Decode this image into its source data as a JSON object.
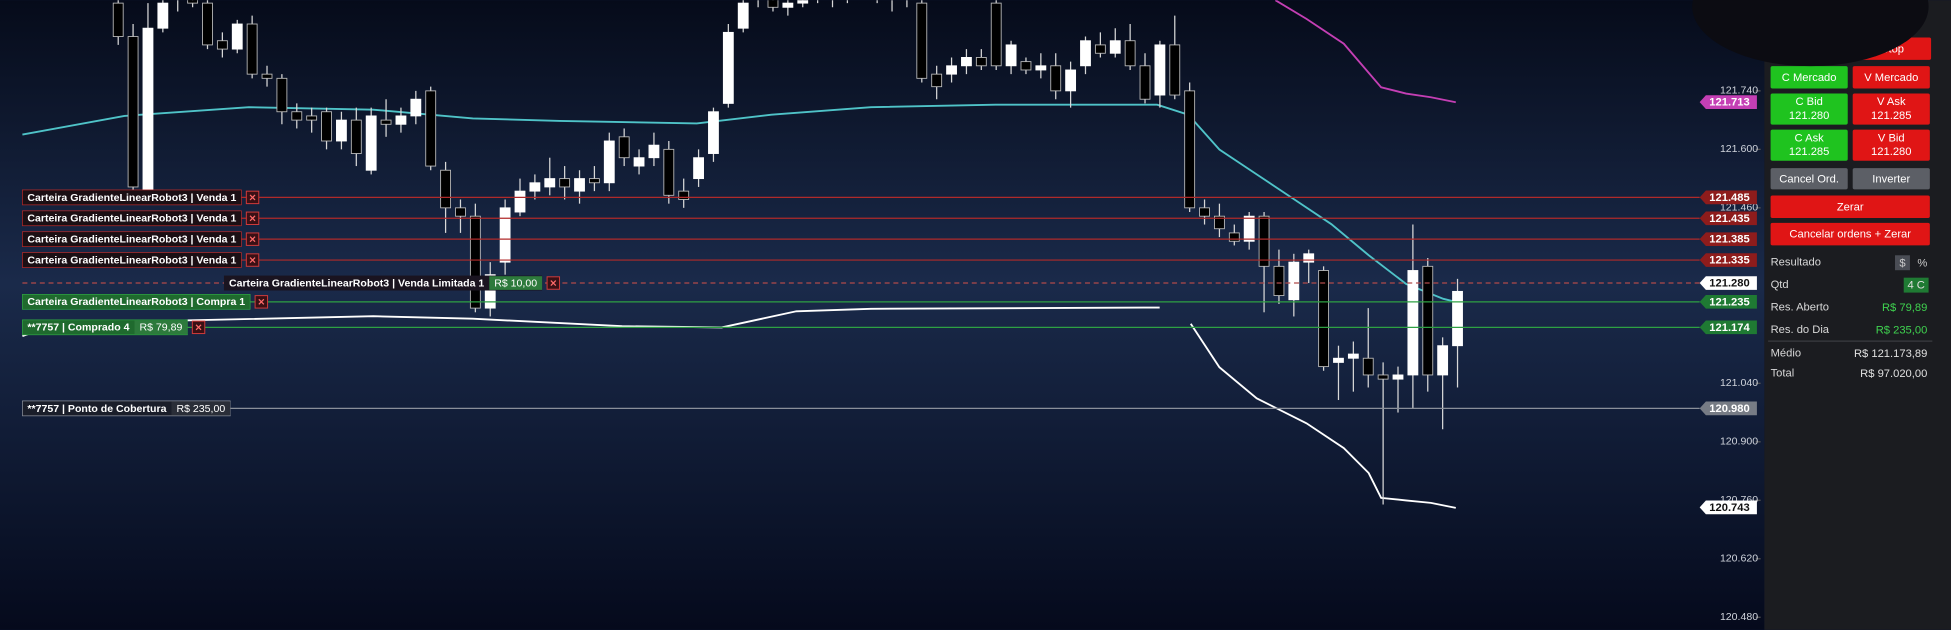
{
  "chart": {
    "type": "candlestick",
    "ylim": [
      120.45,
      121.957
    ],
    "yticks": [
      {
        "value": 121.74,
        "label": "121.740"
      },
      {
        "value": 121.6,
        "label": "121.600"
      },
      {
        "value": 121.46,
        "label": "121.460"
      },
      {
        "value": 121.04,
        "label": "121.040"
      },
      {
        "value": 120.9,
        "label": "120.900"
      },
      {
        "value": 120.76,
        "label": "120.760"
      },
      {
        "value": 120.62,
        "label": "120.620"
      },
      {
        "value": 120.48,
        "label": "120.480"
      }
    ],
    "candles": {
      "open": [
        121.95,
        121.87,
        121.48,
        121.89,
        121.96,
        121.98,
        121.95,
        121.86,
        121.84,
        121.9,
        121.78,
        121.77,
        121.69,
        121.68,
        121.69,
        121.62,
        121.67,
        121.55,
        121.67,
        121.66,
        121.68,
        121.74,
        121.55,
        121.46,
        121.44,
        121.22,
        121.33,
        121.45,
        121.5,
        121.51,
        121.53,
        121.5,
        121.53,
        121.52,
        121.63,
        121.56,
        121.58,
        121.6,
        121.5,
        121.53,
        121.59,
        121.71,
        121.89,
        121.96,
        121.97,
        121.94,
        121.95,
        121.98,
        121.96,
        121.97,
        121.98,
        121.99,
        121.96,
        121.97,
        121.95,
        121.78,
        121.78,
        121.8,
        121.82,
        121.95,
        121.8,
        121.81,
        121.79,
        121.8,
        121.74,
        121.8,
        121.85,
        121.83,
        121.86,
        121.8,
        121.73,
        121.85,
        121.74,
        121.46,
        121.44,
        121.4,
        121.38,
        121.44,
        121.32,
        121.24,
        121.33,
        121.31,
        121.09,
        121.1,
        121.1,
        121.06,
        121.05,
        121.06,
        121.32,
        121.06,
        121.13
      ],
      "high": [
        121.96,
        121.9,
        121.95,
        121.97,
        121.99,
        122.0,
        121.96,
        121.88,
        121.91,
        121.92,
        121.8,
        121.78,
        121.71,
        121.7,
        121.7,
        121.69,
        121.7,
        121.7,
        121.72,
        121.7,
        121.74,
        121.75,
        121.57,
        121.48,
        121.47,
        121.33,
        121.48,
        121.53,
        121.54,
        121.58,
        121.56,
        121.55,
        121.56,
        121.64,
        121.65,
        121.6,
        121.64,
        121.62,
        121.53,
        121.6,
        121.7,
        121.9,
        121.97,
        121.99,
        122.0,
        121.96,
        121.99,
        122.01,
        121.98,
        122.0,
        122.02,
        122.01,
        121.98,
        121.99,
        121.96,
        121.8,
        121.82,
        121.84,
        121.84,
        121.96,
        121.86,
        121.82,
        121.83,
        121.83,
        121.81,
        121.87,
        121.88,
        121.89,
        121.9,
        121.83,
        121.86,
        121.92,
        121.76,
        121.48,
        121.47,
        121.42,
        121.45,
        121.45,
        121.36,
        121.35,
        121.36,
        121.32,
        121.13,
        121.14,
        121.22,
        121.09,
        121.08,
        121.42,
        121.34,
        121.15,
        121.29
      ],
      "low": [
        121.85,
        121.48,
        121.47,
        121.88,
        121.93,
        121.94,
        121.84,
        121.82,
        121.83,
        121.77,
        121.75,
        121.66,
        121.65,
        121.64,
        121.6,
        121.6,
        121.56,
        121.54,
        121.63,
        121.64,
        121.66,
        121.55,
        121.4,
        121.4,
        121.21,
        121.2,
        121.3,
        121.44,
        121.48,
        121.49,
        121.48,
        121.47,
        121.5,
        121.5,
        121.56,
        121.54,
        121.56,
        121.47,
        121.46,
        121.51,
        121.57,
        121.7,
        121.88,
        121.94,
        121.93,
        121.92,
        121.94,
        121.95,
        121.94,
        121.95,
        121.96,
        121.95,
        121.93,
        121.94,
        121.76,
        121.72,
        121.76,
        121.78,
        121.79,
        121.79,
        121.78,
        121.78,
        121.77,
        121.72,
        121.7,
        121.78,
        121.82,
        121.82,
        121.79,
        121.71,
        121.7,
        121.72,
        121.45,
        121.42,
        121.39,
        121.37,
        121.36,
        121.21,
        121.23,
        121.2,
        121.28,
        121.07,
        121.0,
        121.02,
        121.03,
        120.75,
        120.97,
        120.98,
        121.02,
        120.93,
        121.03
      ],
      "close": [
        121.87,
        121.51,
        121.89,
        121.95,
        121.98,
        121.95,
        121.85,
        121.84,
        121.9,
        121.78,
        121.77,
        121.69,
        121.67,
        121.67,
        121.62,
        121.67,
        121.59,
        121.68,
        121.66,
        121.68,
        121.72,
        121.56,
        121.46,
        121.44,
        121.22,
        121.3,
        121.46,
        121.5,
        121.52,
        121.53,
        121.51,
        121.53,
        121.52,
        121.62,
        121.58,
        121.58,
        121.61,
        121.49,
        121.48,
        121.58,
        121.69,
        121.88,
        121.95,
        121.97,
        121.94,
        121.95,
        121.98,
        121.96,
        121.97,
        121.98,
        121.99,
        121.96,
        121.97,
        121.98,
        121.77,
        121.75,
        121.8,
        121.82,
        121.8,
        121.8,
        121.85,
        121.79,
        121.8,
        121.74,
        121.79,
        121.86,
        121.83,
        121.86,
        121.8,
        121.72,
        121.85,
        121.73,
        121.46,
        121.44,
        121.41,
        121.38,
        121.44,
        121.32,
        121.25,
        121.33,
        121.35,
        121.08,
        121.1,
        121.11,
        121.06,
        121.05,
        121.06,
        121.31,
        121.06,
        121.13,
        121.26
      ]
    },
    "orders": [
      {
        "label": "Carteira GradienteLinearRobot3 | Venda 1",
        "kind": "sell",
        "price": {
          "value": 121.485,
          "label": "121.485"
        }
      },
      {
        "label": "Carteira GradienteLinearRobot3 | Venda 1",
        "kind": "sell",
        "price": {
          "value": 121.435,
          "label": "121.435"
        }
      },
      {
        "label": "Carteira GradienteLinearRobot3 | Venda 1",
        "kind": "sell",
        "price": {
          "value": 121.385,
          "label": "121.385"
        }
      },
      {
        "label": "Carteira GradienteLinearRobot3 | Venda 1",
        "kind": "sell",
        "price": {
          "value": 121.335,
          "label": "121.335"
        }
      },
      {
        "label": "Carteira GradienteLinearRobot3 | Venda Limitada 1",
        "kind": "limit",
        "result": "R$ 10,00",
        "price": {
          "value": 121.28,
          "label": "121.280"
        }
      },
      {
        "label": "Carteira GradienteLinearRobot3 | Compra 1",
        "kind": "buy",
        "price": {
          "value": 121.235,
          "label": "121.235"
        }
      },
      {
        "label": "**7757 | Comprado 4",
        "kind": "position",
        "result": "R$ 79,89",
        "price": {
          "value": 121.174,
          "label": "121.174"
        }
      },
      {
        "label": "**7757 | Ponto de Cobertura",
        "kind": "cover",
        "result": "R$ 235,00",
        "price": {
          "value": 120.98,
          "label": "120.980"
        }
      }
    ],
    "indicator_tags": [
      {
        "value": 121.713,
        "label": "121.713",
        "color": "#c43fb4"
      },
      {
        "value": 120.743,
        "label": "120.743",
        "color": "#ffffff"
      }
    ]
  },
  "panel": {
    "buttons": [
      {
        "label": "Stop",
        "kind": "sell"
      },
      {
        "label": "C Mercado",
        "kind": "buy"
      },
      {
        "label": "V Mercado",
        "kind": "sell"
      },
      {
        "label": "C Bid",
        "price": "121.280",
        "kind": "buy"
      },
      {
        "label": "V Ask",
        "price": "121.285",
        "kind": "sell"
      },
      {
        "label": "C Ask",
        "price": "121.285",
        "kind": "buy"
      },
      {
        "label": "V Bid",
        "price": "121.280",
        "kind": "sell"
      },
      {
        "label": "Cancel Ord.",
        "kind": "neutral"
      },
      {
        "label": "Inverter",
        "kind": "neutral"
      },
      {
        "label": "Zerar",
        "kind": "sell"
      },
      {
        "label": "Cancelar ordens + Zerar",
        "kind": "sell"
      }
    ],
    "info": [
      {
        "label": "Resultado",
        "toggles": [
          "$",
          "%"
        ]
      },
      {
        "label": "Qtd",
        "value": "4 C",
        "kind": "badge"
      },
      {
        "label": "Res. Aberto",
        "value": "R$ 79,89",
        "kind": "positive"
      },
      {
        "label": "Res. do Dia",
        "value": "R$ 235,00",
        "kind": "positive"
      },
      {
        "label": "Médio",
        "value": "R$ 121.173,89",
        "kind": "plain"
      },
      {
        "label": "Total",
        "value": "R$ 97.020,00",
        "kind": "plain"
      }
    ]
  }
}
